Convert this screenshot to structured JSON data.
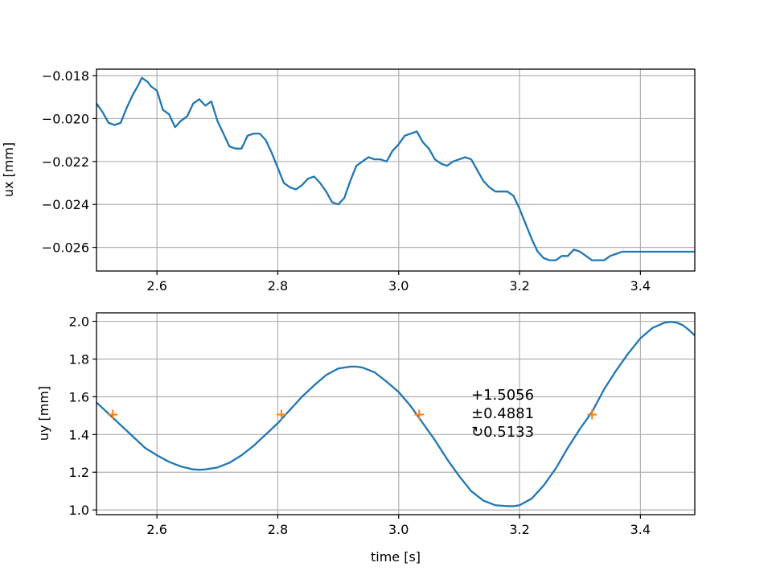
{
  "chart_data": [
    {
      "type": "line",
      "title": "",
      "xlabel": "",
      "ylabel": "ux [mm]",
      "xlim": [
        2.5,
        3.49
      ],
      "ylim": [
        -0.0271,
        -0.0177
      ],
      "xticks": [
        2.6,
        2.8,
        3.0,
        3.2,
        3.4
      ],
      "xtick_labels": [
        "2.6",
        "2.8",
        "3.0",
        "3.2",
        "3.4"
      ],
      "yticks": [
        -0.026,
        -0.024,
        -0.022,
        -0.02,
        -0.018
      ],
      "ytick_labels": [
        "−0.026",
        "−0.024",
        "−0.022",
        "−0.020",
        "−0.018"
      ],
      "grid": true,
      "series": [
        {
          "color": "#1f77b4",
          "x": [
            2.5,
            2.51,
            2.52,
            2.53,
            2.54,
            2.55,
            2.56,
            2.57,
            2.575,
            2.585,
            2.59,
            2.6,
            2.61,
            2.62,
            2.63,
            2.64,
            2.65,
            2.66,
            2.67,
            2.68,
            2.69,
            2.7,
            2.71,
            2.72,
            2.73,
            2.74,
            2.75,
            2.76,
            2.77,
            2.78,
            2.79,
            2.8,
            2.81,
            2.82,
            2.83,
            2.84,
            2.85,
            2.86,
            2.87,
            2.88,
            2.89,
            2.9,
            2.91,
            2.92,
            2.93,
            2.94,
            2.95,
            2.96,
            2.97,
            2.98,
            2.99,
            3.0,
            3.01,
            3.02,
            3.03,
            3.04,
            3.05,
            3.06,
            3.07,
            3.08,
            3.09,
            3.1,
            3.11,
            3.12,
            3.13,
            3.14,
            3.15,
            3.16,
            3.17,
            3.18,
            3.19,
            3.2,
            3.21,
            3.22,
            3.23,
            3.24,
            3.25,
            3.26,
            3.27,
            3.28,
            3.29,
            3.3,
            3.31,
            3.32,
            3.33,
            3.34,
            3.35,
            3.36,
            3.37,
            3.38,
            3.39,
            3.4,
            3.41,
            3.42,
            3.43,
            3.44,
            3.45,
            3.46,
            3.47,
            3.48,
            3.49
          ],
          "y": [
            -0.0193,
            -0.0197,
            -0.0202,
            -0.0203,
            -0.0202,
            -0.0195,
            -0.0189,
            -0.0184,
            -0.0181,
            -0.0183,
            -0.0185,
            -0.0187,
            -0.0196,
            -0.0198,
            -0.0204,
            -0.0201,
            -0.0199,
            -0.0193,
            -0.0191,
            -0.0194,
            -0.0192,
            -0.0201,
            -0.0207,
            -0.0213,
            -0.0214,
            -0.0214,
            -0.0208,
            -0.0207,
            -0.0207,
            -0.021,
            -0.0216,
            -0.0223,
            -0.023,
            -0.0232,
            -0.0233,
            -0.0231,
            -0.0228,
            -0.0227,
            -0.023,
            -0.0234,
            -0.0239,
            -0.024,
            -0.0237,
            -0.0229,
            -0.0222,
            -0.022,
            -0.0218,
            -0.0219,
            -0.0219,
            -0.022,
            -0.0215,
            -0.0212,
            -0.0208,
            -0.0207,
            -0.0206,
            -0.0211,
            -0.0214,
            -0.0219,
            -0.0221,
            -0.0222,
            -0.022,
            -0.0219,
            -0.0218,
            -0.0219,
            -0.0224,
            -0.0229,
            -0.0232,
            -0.0234,
            -0.0234,
            -0.0234,
            -0.0236,
            -0.0242,
            -0.0249,
            -0.0256,
            -0.0262,
            -0.0265,
            -0.0266,
            -0.0266,
            -0.0264,
            -0.0264,
            -0.0261,
            -0.0262,
            -0.0264,
            -0.0266,
            -0.0266,
            -0.0266,
            -0.0264,
            -0.0263,
            -0.0262,
            -0.0262,
            -0.0262,
            -0.0262,
            -0.0262,
            -0.0262,
            -0.0262,
            -0.0262,
            -0.0262,
            -0.0262,
            -0.0262,
            -0.0262,
            -0.0262
          ]
        }
      ]
    },
    {
      "type": "line",
      "title": "",
      "xlabel": "time [s]",
      "ylabel": "uy [mm]",
      "xlim": [
        2.5,
        3.49
      ],
      "ylim": [
        0.975,
        2.045
      ],
      "xticks": [
        2.6,
        2.8,
        3.0,
        3.2,
        3.4
      ],
      "xtick_labels": [
        "2.6",
        "2.8",
        "3.0",
        "3.2",
        "3.4"
      ],
      "yticks": [
        1.0,
        1.2,
        1.4,
        1.6,
        1.8,
        2.0
      ],
      "ytick_labels": [
        "1.0",
        "1.2",
        "1.4",
        "1.6",
        "1.8",
        "2.0"
      ],
      "grid": true,
      "series": [
        {
          "color": "#1f77b4",
          "x": [
            2.5,
            2.52,
            2.54,
            2.56,
            2.58,
            2.6,
            2.62,
            2.64,
            2.66,
            2.67,
            2.68,
            2.7,
            2.72,
            2.74,
            2.76,
            2.78,
            2.8,
            2.82,
            2.84,
            2.86,
            2.88,
            2.9,
            2.92,
            2.93,
            2.94,
            2.96,
            2.98,
            3.0,
            3.02,
            3.04,
            3.06,
            3.08,
            3.1,
            3.12,
            3.14,
            3.16,
            3.18,
            3.19,
            3.2,
            3.22,
            3.24,
            3.26,
            3.28,
            3.3,
            3.32,
            3.34,
            3.36,
            3.38,
            3.4,
            3.42,
            3.44,
            3.45,
            3.46,
            3.47,
            3.48,
            3.49
          ],
          "y": [
            1.57,
            1.51,
            1.45,
            1.39,
            1.33,
            1.29,
            1.255,
            1.23,
            1.215,
            1.213,
            1.215,
            1.225,
            1.25,
            1.29,
            1.34,
            1.4,
            1.46,
            1.53,
            1.6,
            1.66,
            1.715,
            1.75,
            1.76,
            1.76,
            1.755,
            1.73,
            1.68,
            1.625,
            1.55,
            1.46,
            1.37,
            1.27,
            1.18,
            1.1,
            1.05,
            1.025,
            1.02,
            1.02,
            1.025,
            1.06,
            1.13,
            1.22,
            1.33,
            1.43,
            1.52,
            1.64,
            1.74,
            1.83,
            1.91,
            1.965,
            1.993,
            1.997,
            1.993,
            1.98,
            1.955,
            1.925
          ]
        }
      ],
      "markers": {
        "color": "#ff7f0e",
        "symbol": "+",
        "x": [
          2.527,
          2.806,
          3.034,
          3.32
        ],
        "y": [
          1.5056,
          1.5056,
          1.5056,
          1.5056
        ]
      },
      "annotation": {
        "lines": [
          "+1.5056",
          "±0.4881",
          "↻0.5133"
        ]
      }
    }
  ]
}
